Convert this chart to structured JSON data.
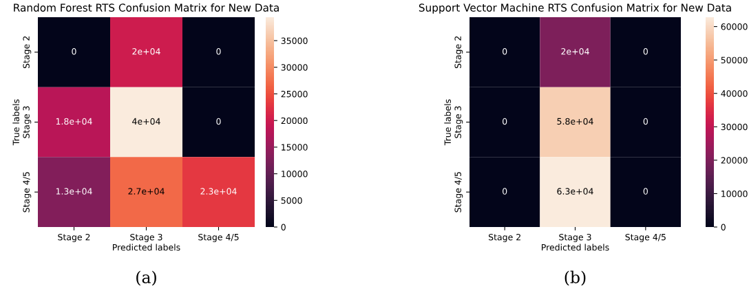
{
  "chart_data": [
    {
      "type": "heatmap",
      "title": "Random Forest RTS Confusion Matrix for New Data",
      "xlabel": "Predicted labels",
      "ylabel": "True labels",
      "categories": [
        "Stage 2",
        "Stage 3",
        "Stage 4/5"
      ],
      "y_categories": [
        "Stage 2",
        "Stage 3",
        "Stage 4/5"
      ],
      "cells": [
        [
          0,
          20000,
          0
        ],
        [
          18000,
          39400,
          0
        ],
        [
          13000,
          27000,
          23000
        ]
      ],
      "cell_labels": [
        [
          "0",
          "2e+04",
          "0"
        ],
        [
          "1.8e+04",
          "4e+04",
          "0"
        ],
        [
          "1.3e+04",
          "2.7e+04",
          "2.3e+04"
        ]
      ],
      "clim": [
        0,
        39400
      ],
      "cticks": [
        0,
        5000,
        10000,
        15000,
        20000,
        25000,
        30000,
        35000
      ],
      "annotations": [
        "(a)"
      ]
    },
    {
      "type": "heatmap",
      "title": "Support Vector Machine RTS Confusion Matrix for New Data",
      "xlabel": "Predicted labels",
      "ylabel": "True labels",
      "categories": [
        "Stage 2",
        "Stage 3",
        "Stage 4/5"
      ],
      "y_categories": [
        "Stage 2",
        "Stage 3",
        "Stage 4/5"
      ],
      "cells": [
        [
          0,
          20000,
          0
        ],
        [
          0,
          58000,
          0
        ],
        [
          0,
          62800,
          0
        ]
      ],
      "cell_labels": [
        [
          "0",
          "2e+04",
          "0"
        ],
        [
          "0",
          "5.8e+04",
          "0"
        ],
        [
          "0",
          "6.3e+04",
          "0"
        ]
      ],
      "clim": [
        0,
        62800
      ],
      "cticks": [
        0,
        10000,
        20000,
        30000,
        40000,
        50000,
        60000
      ],
      "annotations": [
        "(b)"
      ]
    }
  ]
}
